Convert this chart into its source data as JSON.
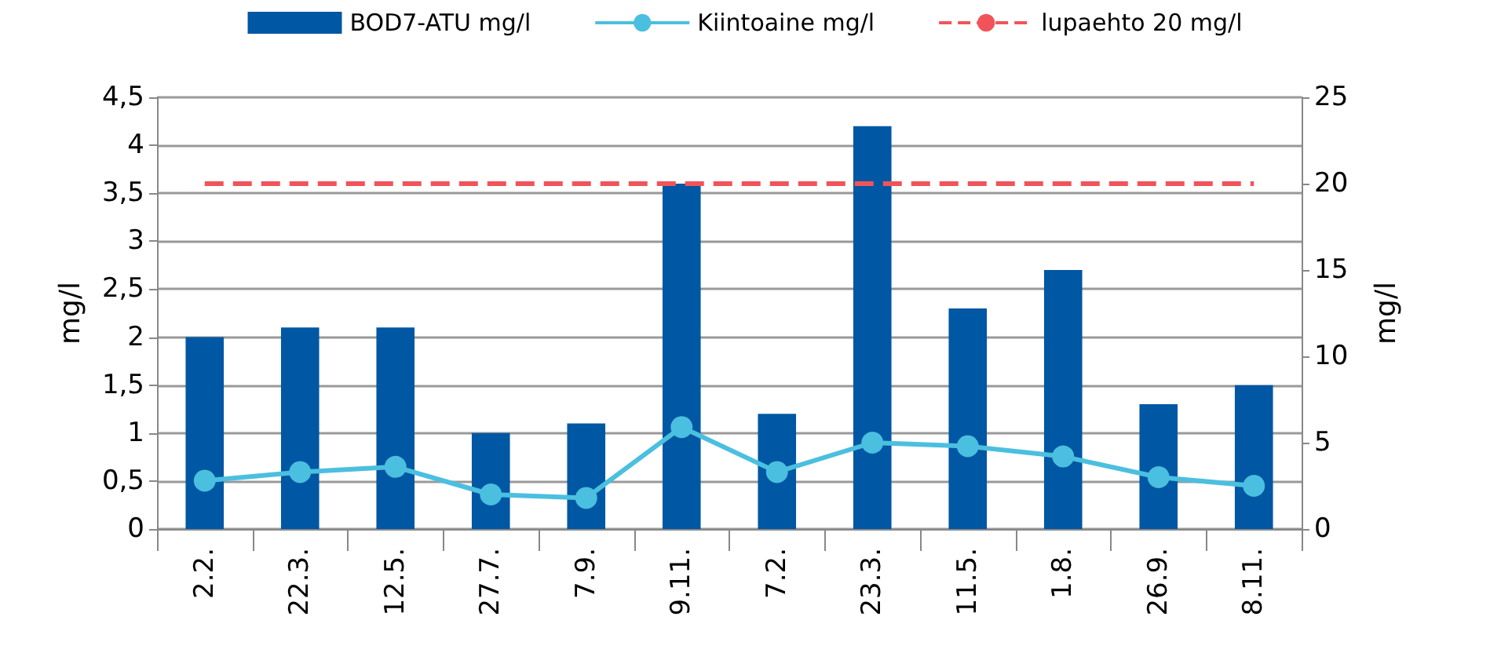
{
  "chart_data": {
    "type": "bar",
    "categories": [
      "2.2.",
      "22.3.",
      "12.5.",
      "27.7.",
      "7.9.",
      "9.11.",
      "7.2.",
      "23.3.",
      "11.5.",
      "1.8.",
      "26.9.",
      "8.11."
    ],
    "series": [
      {
        "name": "BOD7-ATU mg/l",
        "color": "#0057a4",
        "values": [
          2.0,
          2.1,
          2.1,
          1.0,
          1.1,
          3.6,
          1.2,
          4.2,
          2.3,
          2.7,
          1.3,
          1.5
        ]
      },
      {
        "name": "Kiintoaine mg/l",
        "type": "line",
        "axis": "y2",
        "color": "#4bbfdf",
        "marker": "circle",
        "values": [
          2.8,
          3.3,
          3.6,
          2.0,
          1.8,
          5.9,
          3.3,
          5.0,
          4.8,
          4.2,
          3.0,
          2.5
        ]
      },
      {
        "name": "lupaehto 20 mg/l",
        "type": "line",
        "axis": "y2",
        "color": "#f0545a",
        "marker": "none",
        "line_style": "dashed",
        "values": [
          20,
          20,
          20,
          20,
          20,
          20,
          20,
          20,
          20,
          20,
          20,
          20
        ]
      }
    ],
    "ylabel": "mg/l",
    "y2label": "mg/l",
    "ylim": [
      0,
      4.5
    ],
    "yticks": [
      0,
      {
        "value": 0.5,
        "label": "0,5"
      },
      1,
      {
        "value": 1.5,
        "label": "1,5"
      },
      2,
      {
        "value": 2.5,
        "label": "2,5"
      },
      3,
      {
        "value": 3.5,
        "label": "3,5"
      },
      4,
      {
        "value": 4.5,
        "label": "4,5"
      }
    ],
    "y2lim": [
      0,
      25
    ],
    "y2ticks": [
      0,
      5,
      10,
      15,
      20,
      25
    ],
    "grid": "y",
    "legend": "top"
  }
}
